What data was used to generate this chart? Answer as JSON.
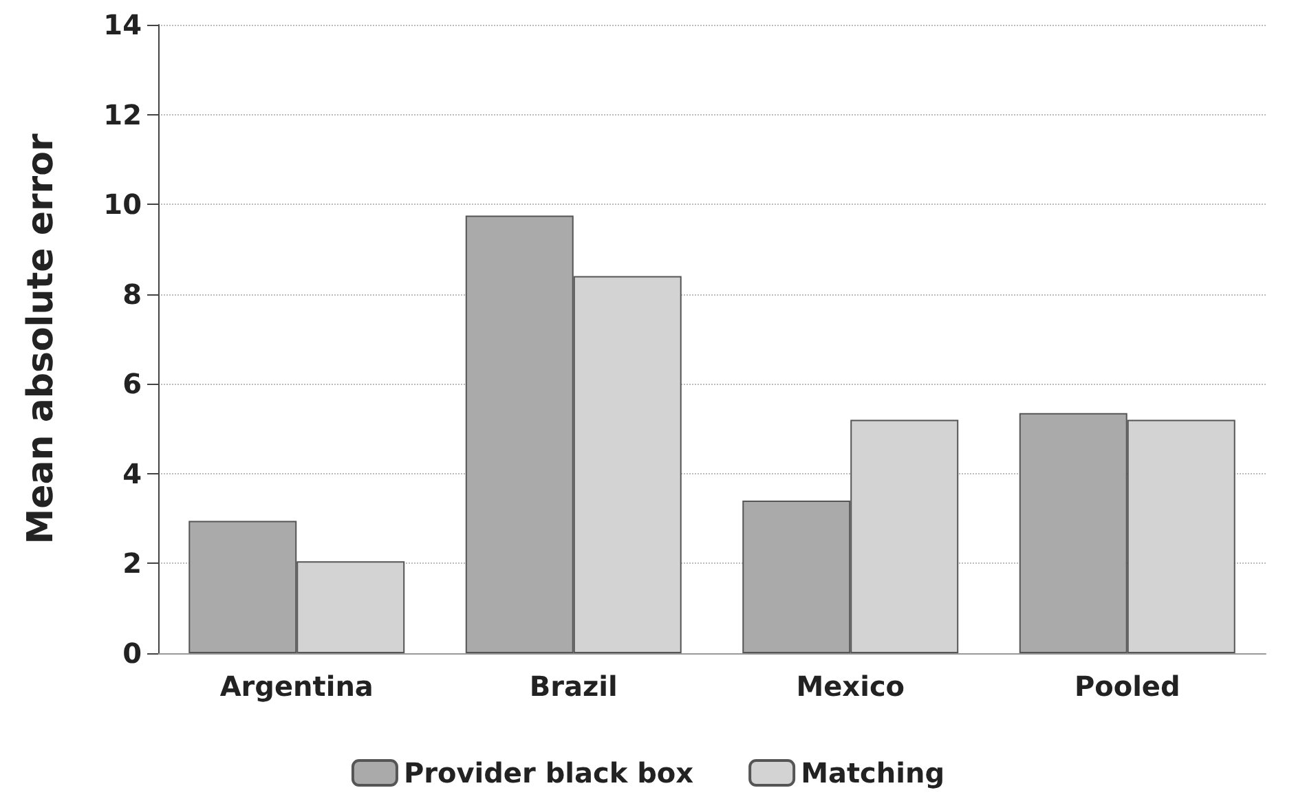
{
  "chart_data": {
    "type": "bar",
    "ylabel": "Mean absolute error",
    "categories": [
      "Argentina",
      "Brazil",
      "Mexico",
      "Pooled"
    ],
    "series": [
      {
        "name": "Provider black box",
        "color": "#aaaaaa",
        "values": [
          2.95,
          9.75,
          3.4,
          5.35
        ]
      },
      {
        "name": "Matching",
        "color": "#d3d3d3",
        "values": [
          2.05,
          8.4,
          5.2,
          5.2
        ]
      }
    ],
    "ylim": [
      0,
      14
    ],
    "yticks": [
      0,
      2,
      4,
      6,
      8,
      10,
      12,
      14
    ],
    "grid": "y",
    "legend": "bottom"
  }
}
